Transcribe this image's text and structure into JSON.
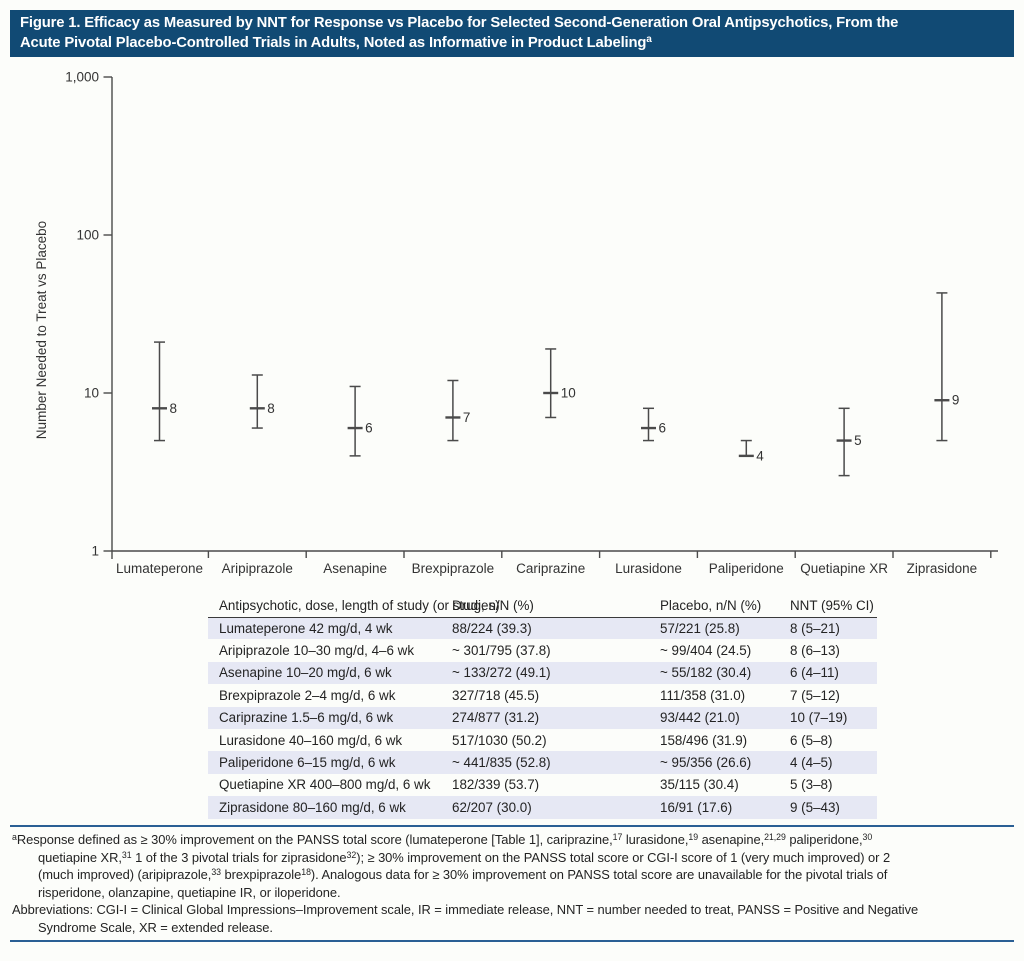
{
  "colors": {
    "title_bar_bg": "#114a74",
    "title_text": "#ffffff",
    "rule": "#2a5f94",
    "row_shade": "#e6e8f4",
    "header_underline": "#3a3a3a",
    "axis": "#4a4a4a",
    "text": "#232323"
  },
  "title": {
    "line1": "Figure 1. Efficacy as Measured by NNT for Response vs Placebo for Selected Second-Generation Oral Antipsychotics, From the",
    "line2": "Acute Pivotal Placebo-Controlled Trials in Adults, Noted as Informative in Product Labeling^a^"
  },
  "chart_data": {
    "type": "scatter",
    "subtype": "forest-plot-error-bars",
    "categories": [
      "Lumateperone",
      "Aripiprazole",
      "Asenapine",
      "Brexpiprazole",
      "Cariprazine",
      "Lurasidone",
      "Paliperidone",
      "Quetiapine XR",
      "Ziprasidone"
    ],
    "nnt": [
      8,
      8,
      6,
      7,
      10,
      6,
      4,
      5,
      9
    ],
    "ci_low": [
      5,
      6,
      4,
      5,
      7,
      5,
      4,
      3,
      5
    ],
    "ci_high": [
      21,
      13,
      11,
      12,
      19,
      8,
      5,
      8,
      43
    ],
    "ylabel": "Number Needed to Treat vs Placebo",
    "xlabel": "",
    "yscale": "log",
    "ylim": [
      1,
      1000
    ],
    "yticks": [
      "1,000",
      "100",
      "10",
      "1"
    ],
    "grid": false,
    "legend": "none"
  },
  "table": {
    "headers": [
      "Antipsychotic, dose, length of study (or studies)",
      "Drug, n/N (%)",
      "Placebo, n/N (%)",
      "NNT (95% CI)"
    ],
    "rows": [
      {
        "study": "Lumateperone 42 mg/d, 4 wk",
        "drug": "88/224 (39.3)",
        "placebo": "57/221 (25.8)",
        "nnt": "8 (5–21)"
      },
      {
        "study": "Aripiprazole 10–30 mg/d, 4–6 wk",
        "drug": "~ 301/795 (37.8)",
        "placebo": "~ 99/404 (24.5)",
        "nnt": "8 (6–13)"
      },
      {
        "study": "Asenapine 10–20 mg/d, 6 wk",
        "drug": "~ 133/272 (49.1)",
        "placebo": "~ 55/182 (30.4)",
        "nnt": "6 (4–11)"
      },
      {
        "study": "Brexpiprazole 2–4 mg/d, 6 wk",
        "drug": "327/718 (45.5)",
        "placebo": "111/358 (31.0)",
        "nnt": "7 (5–12)"
      },
      {
        "study": "Cariprazine 1.5–6 mg/d, 6 wk",
        "drug": "274/877 (31.2)",
        "placebo": "93/442 (21.0)",
        "nnt": "10 (7–19)"
      },
      {
        "study": "Lurasidone 40–160 mg/d, 6 wk",
        "drug": "517/1030 (50.2)",
        "placebo": "158/496 (31.9)",
        "nnt": "6 (5–8)"
      },
      {
        "study": "Paliperidone 6–15 mg/d, 6 wk",
        "drug": "~ 441/835 (52.8)",
        "placebo": "~ 95/356 (26.6)",
        "nnt": "4 (4–5)"
      },
      {
        "study": "Quetiapine XR 400–800 mg/d, 6 wk",
        "drug": "182/339 (53.7)",
        "placebo": "35/115 (30.4)",
        "nnt": "5 (3–8)"
      },
      {
        "study": "Ziprasidone 80–160 mg/d, 6 wk",
        "drug": "62/207 (30.0)",
        "placebo": "16/91 (17.6)",
        "nnt": "9 (5–43)"
      }
    ]
  },
  "footnotes": {
    "lines": [
      {
        "text": "^a^Response defined as ≥ 30% improvement on the PANSS total score (lumateperone [Table 1], cariprazine,^17^ lurasidone,^19^ asenapine,^21,29^ paliperidone,^30^",
        "cls": ""
      },
      {
        "text": "quetiapine XR,^31^ 1 of the 3 pivotal trials for ziprasidone^32^); ≥ 30% improvement on the PANSS total score or CGI-I score of 1 (very much improved) or 2",
        "cls": "fn-indent"
      },
      {
        "text": "(much improved) (aripiprazole,^33^ brexpiprazole^18^). Analogous data for ≥ 30% improvement on PANSS total score are unavailable for the pivotal trials of",
        "cls": "fn-indent"
      },
      {
        "text": "risperidone, olanzapine, quetiapine IR, or iloperidone.",
        "cls": "fn-indent"
      },
      {
        "text": "Abbreviations: CGI-I = Clinical Global Impressions–Improvement scale, IR = immediate release, NNT = number needed to treat, PANSS = Positive and Negative",
        "cls": ""
      },
      {
        "text": "Syndrome Scale, XR = extended release.",
        "cls": "fn-indent"
      }
    ]
  }
}
